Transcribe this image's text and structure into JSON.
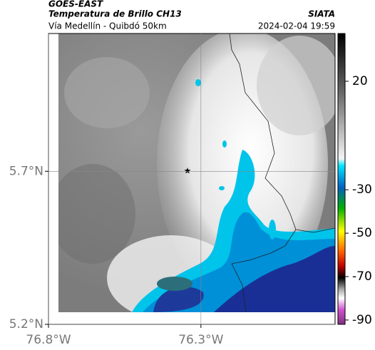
{
  "header": {
    "source": "GOES-EAST",
    "title": "Temperatura de Brillo CH13",
    "subtitle": "Vía Medellín - Quibdó 50km",
    "brand": "SIATA",
    "timestamp": "2024-02-04 19:59"
  },
  "map": {
    "xlim": [
      -76.8,
      -75.86
    ],
    "ylim": [
      5.2,
      6.15
    ],
    "xticks": [
      {
        "value": -76.8,
        "label": "76.8°W"
      },
      {
        "value": -76.3,
        "label": "76.3°W"
      }
    ],
    "yticks": [
      {
        "value": 5.2,
        "label": "5.2°N"
      },
      {
        "value": 5.7,
        "label": "5.7°N"
      }
    ],
    "grid": true
  },
  "colorbar": {
    "clim": [
      -92,
      42
    ],
    "ticks": [
      20,
      -30,
      -50,
      -70,
      -90
    ]
  }
}
